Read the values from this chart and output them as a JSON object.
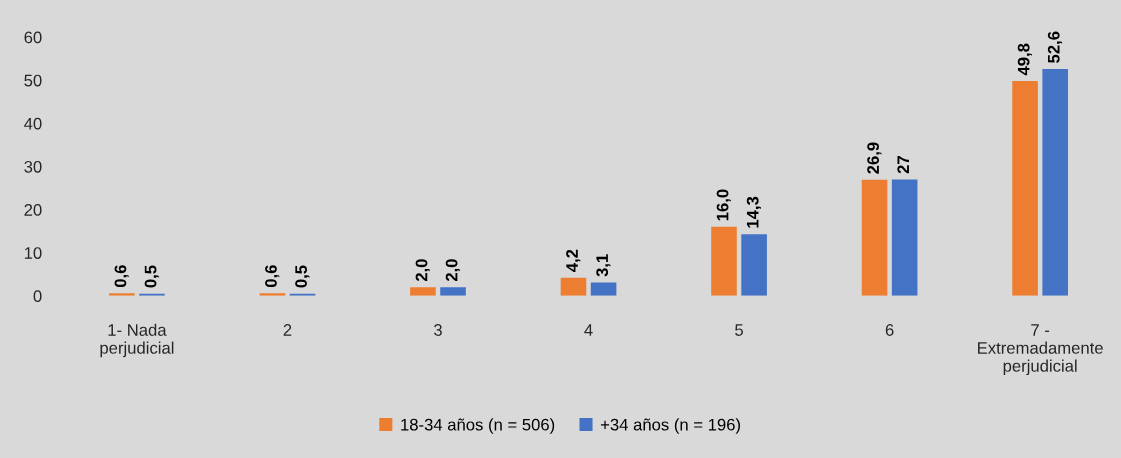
{
  "chart_data": {
    "type": "bar",
    "categories": [
      "1- Nada\nperjudicial",
      "2",
      "3",
      "4",
      "5",
      "6",
      "7 -\nExtremadamente\nperjudicial"
    ],
    "series": [
      {
        "name": "18-34 años (n = 506)",
        "color": "#ed7d31",
        "values": [
          0.6,
          0.6,
          2.0,
          4.2,
          16.0,
          26.9,
          49.8
        ],
        "value_labels": [
          "0,6",
          "0,6",
          "2,0",
          "4,2",
          "16,0",
          "26,9",
          "49,8"
        ]
      },
      {
        "name": "+34 años (n = 196)",
        "color": "#4472c4",
        "values": [
          0.5,
          0.5,
          2.0,
          3.1,
          14.3,
          27,
          52.6
        ],
        "value_labels": [
          "0,5",
          "0,5",
          "2,0",
          "3,1",
          "14,3",
          "27",
          "52,6"
        ]
      }
    ],
    "ylim": [
      0,
      60
    ],
    "yticks": [
      0,
      10,
      20,
      30,
      40,
      50,
      60
    ],
    "grid": false,
    "legend": "bottom"
  }
}
